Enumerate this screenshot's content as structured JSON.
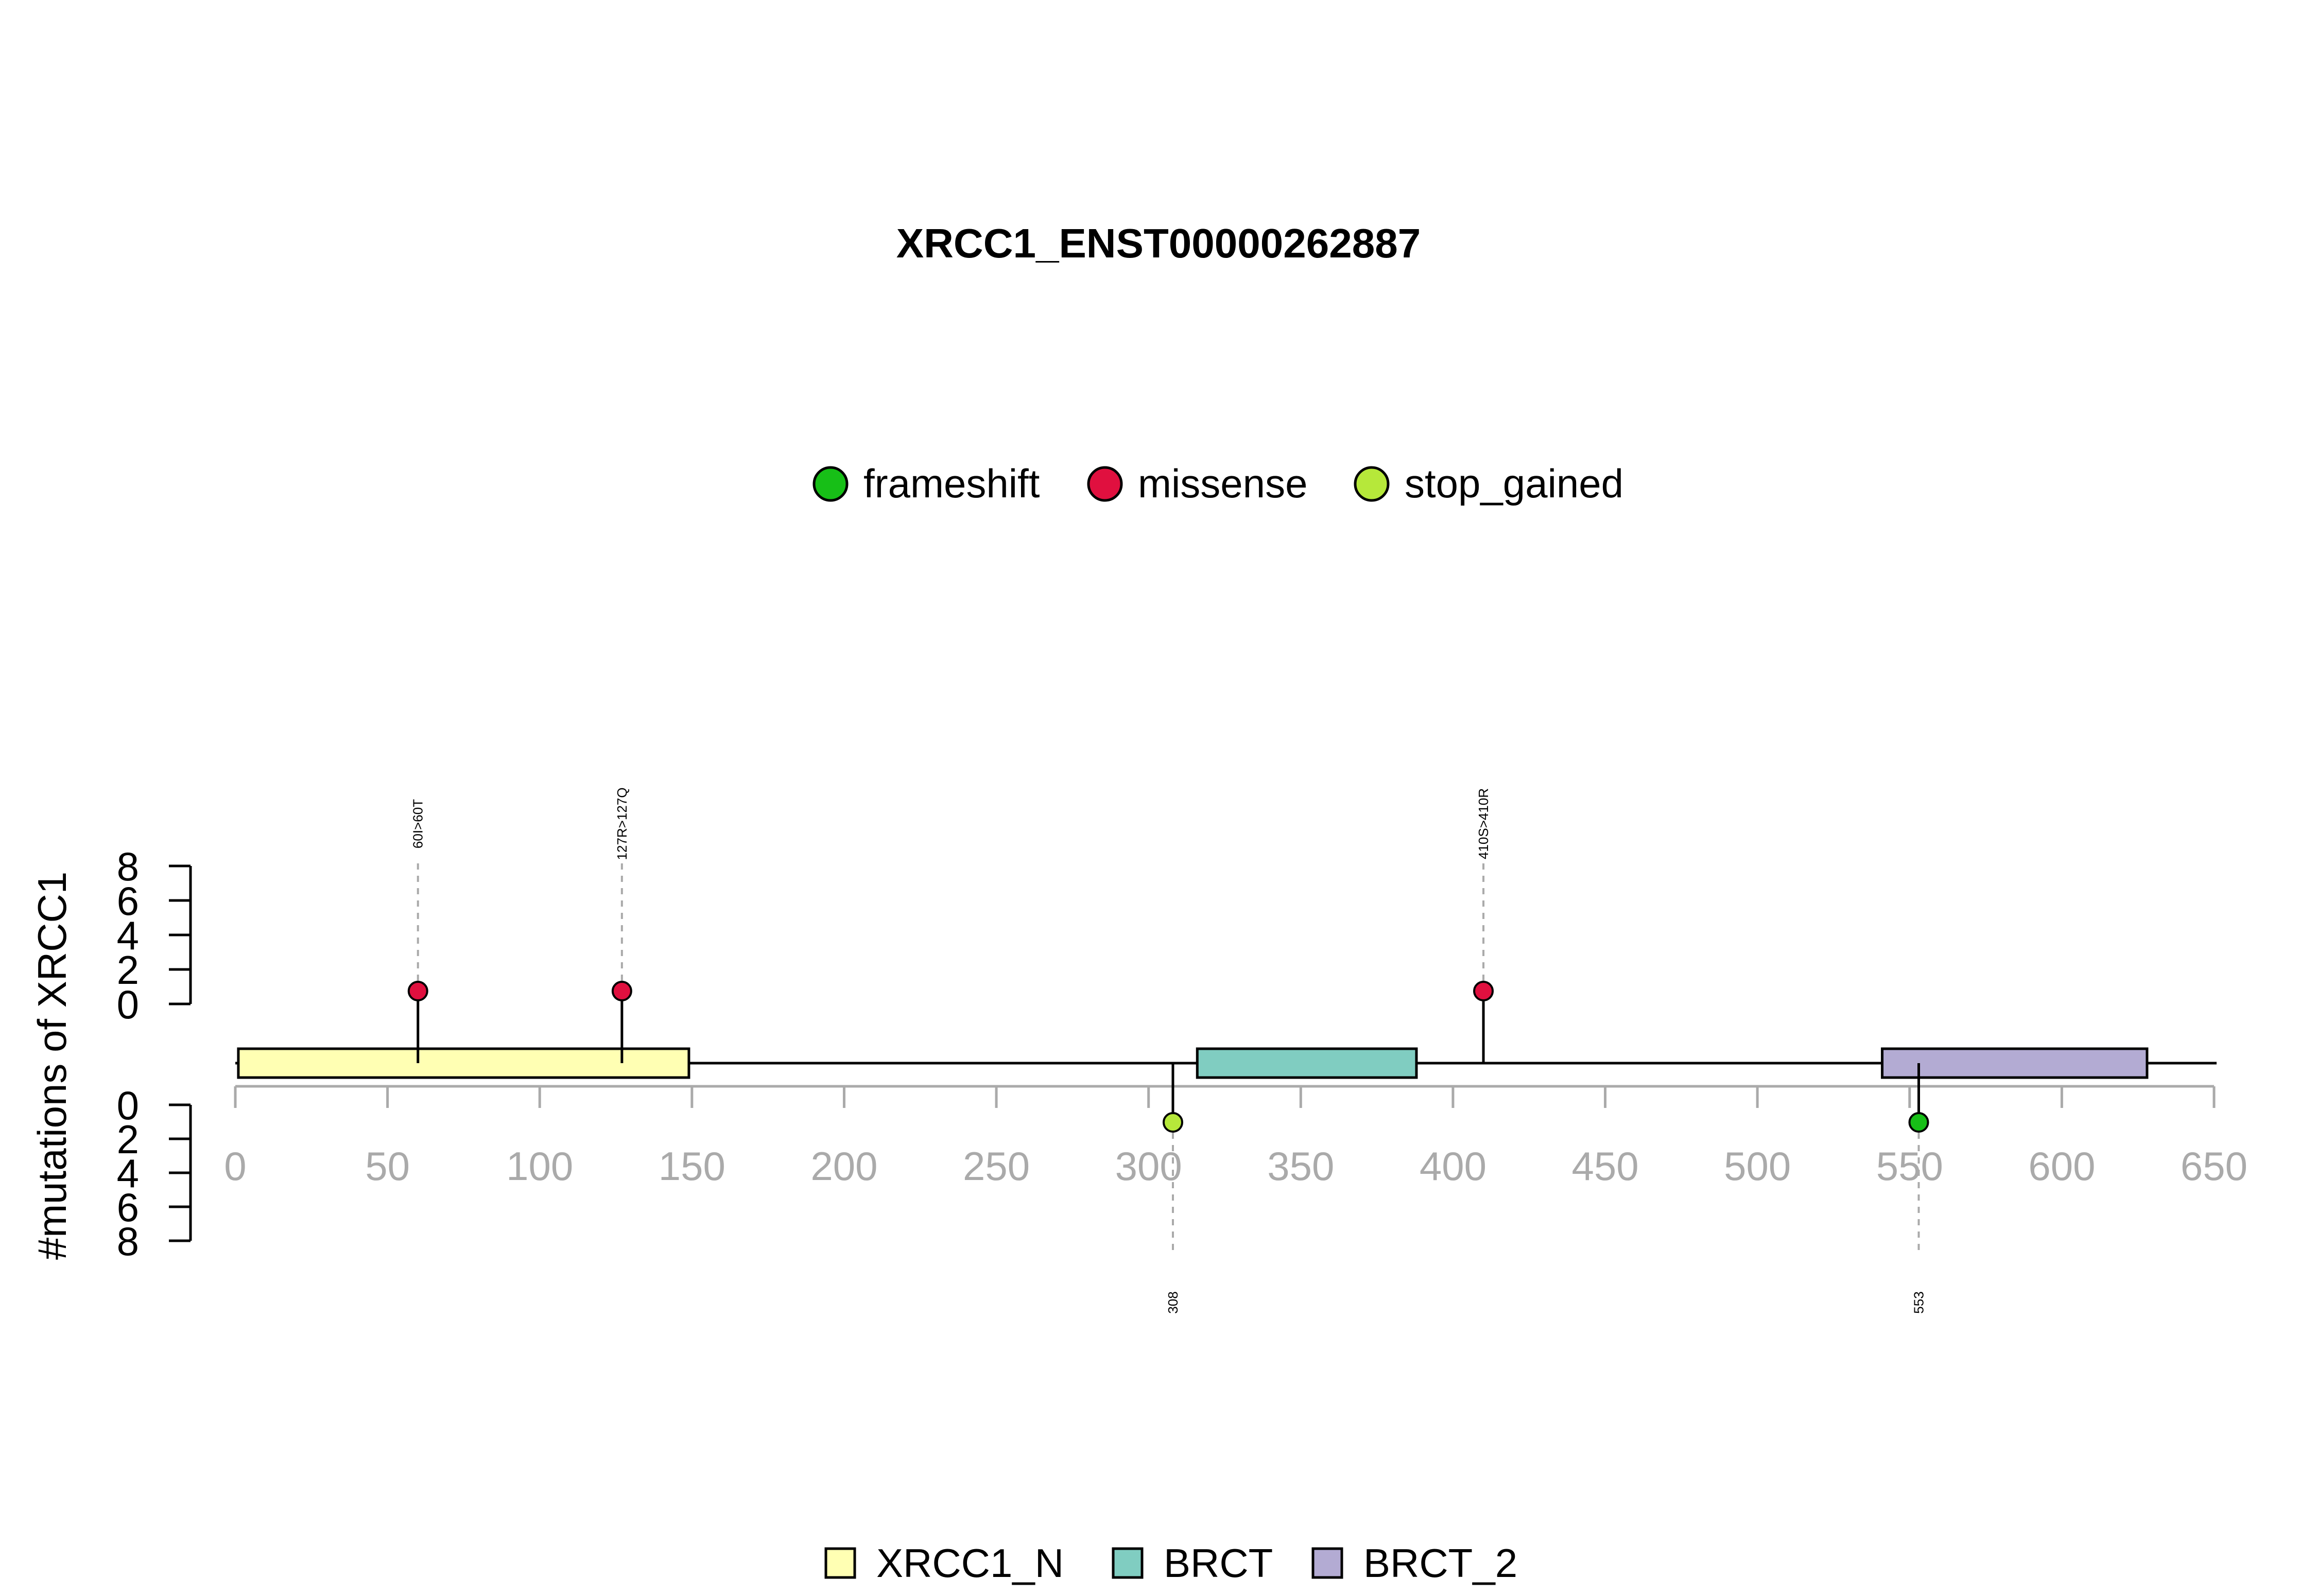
{
  "chart_data": {
    "type": "lollipop",
    "title": "XRCC1_ENST00000262887",
    "ylabel": "#mutations of XRCC1",
    "xlim": [
      0,
      650
    ],
    "x_ticks": [
      0,
      50,
      100,
      150,
      200,
      250,
      300,
      350,
      400,
      450,
      500,
      550,
      600,
      650
    ],
    "count_ticks": [
      0,
      2,
      4,
      6,
      8
    ],
    "mutation_types": [
      {
        "name": "frameshift",
        "color": "#17bf17"
      },
      {
        "name": "missense",
        "color": "#e0103f"
      },
      {
        "name": "stop_gained",
        "color": "#b6e83a"
      }
    ],
    "domains": [
      {
        "name": "XRCC1_N",
        "start": 1,
        "end": 149,
        "color": "#ffffb3"
      },
      {
        "name": "BRCT",
        "start": 316,
        "end": 388,
        "color": "#80cdc1"
      },
      {
        "name": "BRCT_2",
        "start": 541,
        "end": 628,
        "color": "#b3abd3"
      }
    ],
    "protein_length": 650,
    "mutations": [
      {
        "position": 60,
        "label": "60I>60T",
        "type": "missense",
        "count": 1,
        "side": "top"
      },
      {
        "position": 127,
        "label": "127R>127Q",
        "type": "missense",
        "count": 1,
        "side": "top"
      },
      {
        "position": 410,
        "label": "410S>410R",
        "type": "missense",
        "count": 1,
        "side": "top"
      },
      {
        "position": 308,
        "label": "308",
        "type": "stop_gained",
        "count": 1,
        "side": "bottom"
      },
      {
        "position": 553,
        "label": "553",
        "type": "frameshift",
        "count": 1,
        "side": "bottom"
      }
    ]
  }
}
